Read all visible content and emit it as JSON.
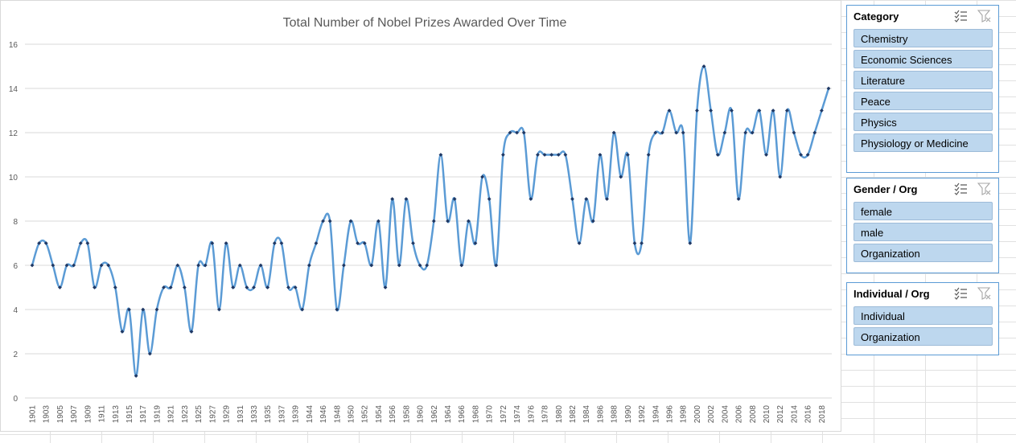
{
  "chart_data": {
    "type": "line",
    "title": "Total Number of Nobel Prizes Awarded Over Time",
    "xlabel": "",
    "ylabel": "",
    "ylim": [
      0,
      16
    ],
    "yticks": [
      0,
      2,
      4,
      6,
      8,
      10,
      12,
      14,
      16
    ],
    "grid": true,
    "smooth": true,
    "markers": true,
    "x": [
      1901,
      1902,
      1903,
      1904,
      1905,
      1906,
      1907,
      1908,
      1909,
      1910,
      1911,
      1912,
      1913,
      1914,
      1915,
      1916,
      1917,
      1918,
      1919,
      1920,
      1921,
      1922,
      1923,
      1924,
      1925,
      1926,
      1927,
      1928,
      1929,
      1930,
      1931,
      1932,
      1933,
      1934,
      1935,
      1936,
      1937,
      1938,
      1939,
      1940,
      1944,
      1945,
      1946,
      1947,
      1948,
      1949,
      1950,
      1951,
      1952,
      1953,
      1954,
      1955,
      1956,
      1957,
      1958,
      1959,
      1960,
      1961,
      1962,
      1963,
      1964,
      1965,
      1966,
      1967,
      1968,
      1969,
      1970,
      1971,
      1972,
      1973,
      1974,
      1975,
      1976,
      1977,
      1978,
      1979,
      1980,
      1981,
      1982,
      1983,
      1984,
      1985,
      1986,
      1987,
      1988,
      1989,
      1990,
      1991,
      1992,
      1993,
      1994,
      1995,
      1996,
      1997,
      1998,
      1999,
      2000,
      2001,
      2002,
      2003,
      2004,
      2005,
      2006,
      2007,
      2008,
      2009,
      2010,
      2011,
      2012,
      2013,
      2014,
      2015,
      2016,
      2017,
      2018,
      2019
    ],
    "xtick_labels": [
      "1901",
      "1903",
      "1905",
      "1907",
      "1909",
      "1911",
      "1913",
      "1915",
      "1917",
      "1919",
      "1921",
      "1923",
      "1925",
      "1927",
      "1929",
      "1931",
      "1933",
      "1935",
      "1937",
      "1939",
      "1944",
      "1946",
      "1948",
      "1950",
      "1952",
      "1954",
      "1956",
      "1958",
      "1960",
      "1962",
      "1964",
      "1966",
      "1968",
      "1970",
      "1972",
      "1974",
      "1976",
      "1978",
      "1980",
      "1982",
      "1984",
      "1986",
      "1988",
      "1990",
      "1992",
      "1994",
      "1996",
      "1998",
      "2000",
      "2002",
      "2004",
      "2006",
      "2008",
      "2010",
      "2012",
      "2014",
      "2016",
      "2018"
    ],
    "series": [
      {
        "values": [
          6,
          7,
          7,
          6,
          5,
          6,
          6,
          7,
          7,
          5,
          6,
          6,
          5,
          3,
          4,
          1,
          4,
          2,
          4,
          5,
          5,
          6,
          5,
          3,
          6,
          6,
          7,
          4,
          7,
          5,
          6,
          5,
          5,
          6,
          5,
          7,
          7,
          5,
          5,
          4,
          6,
          7,
          8,
          8,
          4,
          6,
          8,
          7,
          7,
          6,
          8,
          5,
          9,
          6,
          9,
          7,
          6,
          6,
          8,
          11,
          8,
          9,
          6,
          8,
          7,
          10,
          9,
          6,
          11,
          12,
          12,
          12,
          9,
          11,
          11,
          11,
          11,
          11,
          9,
          7,
          9,
          8,
          11,
          9,
          12,
          10,
          11,
          7,
          7,
          11,
          12,
          12,
          13,
          12,
          12,
          7,
          13,
          15,
          13,
          11,
          12,
          13,
          9,
          12,
          12,
          13,
          11,
          13,
          10,
          13,
          12,
          11,
          11,
          12,
          13,
          14
        ]
      }
    ],
    "line_color": "#5b9bd5",
    "marker_color": "#1f3864"
  },
  "slicers": [
    {
      "title": "Category",
      "items": [
        "Chemistry",
        "Economic Sciences",
        "Literature",
        "Peace",
        "Physics",
        "Physiology or Medicine"
      ]
    },
    {
      "title": "Gender / Org",
      "items": [
        "female",
        "male",
        "Organization"
      ]
    },
    {
      "title": "Individual / Org",
      "items": [
        "Individual",
        "Organization"
      ]
    }
  ]
}
